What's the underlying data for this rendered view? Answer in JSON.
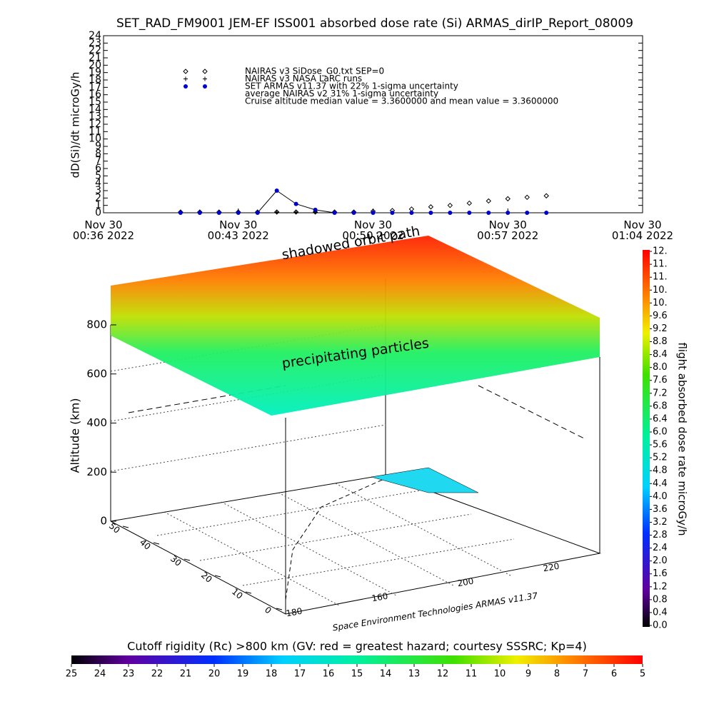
{
  "chart_data": [
    {
      "type": "scatter",
      "title": "SET_RAD_FM9001  JEM-EF ISS001 absorbed dose rate (Si) ARMAS_dirIP_Report_08009",
      "ylabel": "dD(Si)/dt microGy/h",
      "xlim": [
        "2022-11-30 00:36",
        "2022-11-30 01:04"
      ],
      "xticks": [
        {
          "value": "2022-11-30 00:36",
          "label": "Nov 30\n00:36 2022"
        },
        {
          "value": "2022-11-30 00:43",
          "label": "Nov 30\n00:43 2022"
        },
        {
          "value": "2022-11-30 00:50",
          "label": "Nov 30\n00:50 2022"
        },
        {
          "value": "2022-11-30 00:57",
          "label": "Nov 30\n00:57 2022"
        },
        {
          "value": "2022-11-30 01:04",
          "label": "Nov 30\n01:04 2022"
        }
      ],
      "ylim": [
        0,
        24
      ],
      "yticks": [
        0,
        1,
        2,
        3,
        4,
        5,
        6,
        7,
        8,
        9,
        10,
        11,
        12,
        13,
        14,
        15,
        16,
        17,
        18,
        19,
        20,
        21,
        22,
        23,
        24
      ],
      "x": [
        "2022-11-30 00:40",
        "2022-11-30 00:41",
        "2022-11-30 00:42",
        "2022-11-30 00:43",
        "2022-11-30 00:44",
        "2022-11-30 00:45",
        "2022-11-30 00:46",
        "2022-11-30 00:47",
        "2022-11-30 00:48",
        "2022-11-30 00:49",
        "2022-11-30 00:50",
        "2022-11-30 00:51",
        "2022-11-30 00:52",
        "2022-11-30 00:53",
        "2022-11-30 00:54",
        "2022-11-30 00:55",
        "2022-11-30 00:56",
        "2022-11-30 00:57",
        "2022-11-30 00:58",
        "2022-11-30 00:59"
      ],
      "series": [
        {
          "name": "NAIRAS v3 SiDose_G0.txt SEP=0",
          "marker": "diamond",
          "color": "#000000",
          "values": [
            0.1,
            0.1,
            0.1,
            0.1,
            0.1,
            0.1,
            0.1,
            0.1,
            0.1,
            0.1,
            0.2,
            0.3,
            0.5,
            0.8,
            1.0,
            1.3,
            1.6,
            1.9,
            2.1,
            2.3
          ]
        },
        {
          "name": "NAIRAS v3 NASA LaRC runs",
          "marker": "plus",
          "color": "#000000",
          "values": [
            0.1,
            0.1,
            0.1,
            0.1,
            0.1,
            0.1,
            0.1,
            0.1,
            null,
            null,
            null,
            null,
            null,
            null,
            null,
            null,
            null,
            null,
            null,
            null
          ]
        },
        {
          "name": "SET ARMAS v11.37 with 22% 1-sigma uncertainty",
          "marker": "circle",
          "color": "#0000cc",
          "values": [
            0,
            0,
            0,
            0,
            0,
            3.0,
            1.2,
            0.4,
            0,
            0,
            0,
            0,
            0,
            0,
            0,
            0,
            0,
            0,
            0,
            0
          ]
        }
      ],
      "notes": [
        "average NAIRAS v2 31% 1-sigma uncertainty",
        "Cruise altitude median value = 3.3600000 and mean value = 3.3600000"
      ]
    },
    {
      "type": "surface3d",
      "annotations": [
        "shadowed orbit path",
        "precipitating particles"
      ],
      "zlabel": "Altitude (km)",
      "zlim": [
        0,
        800
      ],
      "zticks": [
        0,
        200,
        400,
        600,
        800
      ],
      "yticks": [
        0,
        10,
        20,
        30,
        40,
        50
      ],
      "x_tick_labels": [
        "180",
        "160",
        "200",
        "220"
      ],
      "credit": "Space Environment Technologies ARMAS v11.37"
    },
    {
      "type": "colorbar",
      "label": "flight absorbed dose rate microGy/h",
      "ylim": [
        0,
        12
      ],
      "yticks": [
        {
          "value": 0,
          "label": "0.0"
        },
        {
          "value": 0.4,
          "label": "0.4"
        },
        {
          "value": 0.8,
          "label": "0.8"
        },
        {
          "value": 1.2,
          "label": "1.2"
        },
        {
          "value": 1.6,
          "label": "1.6"
        },
        {
          "value": 2.0,
          "label": "2.0"
        },
        {
          "value": 2.4,
          "label": "2.4"
        },
        {
          "value": 2.8,
          "label": "2.8"
        },
        {
          "value": 3.2,
          "label": "3.2"
        },
        {
          "value": 3.6,
          "label": "3.6"
        },
        {
          "value": 4.0,
          "label": "4.0"
        },
        {
          "value": 4.4,
          "label": "4.4"
        },
        {
          "value": 4.8,
          "label": "4.8"
        },
        {
          "value": 5.2,
          "label": "5.2"
        },
        {
          "value": 5.6,
          "label": "5.6"
        },
        {
          "value": 6.0,
          "label": "6.0"
        },
        {
          "value": 6.4,
          "label": "6.4"
        },
        {
          "value": 6.8,
          "label": "6.8"
        },
        {
          "value": 7.2,
          "label": "7.2"
        },
        {
          "value": 7.6,
          "label": "7.6"
        },
        {
          "value": 8.0,
          "label": "8.0"
        },
        {
          "value": 8.4,
          "label": "8.4"
        },
        {
          "value": 8.8,
          "label": "8.8"
        },
        {
          "value": 9.2,
          "label": "9.2"
        },
        {
          "value": 9.6,
          "label": "9.6"
        },
        {
          "value": 10.0,
          "label": "10."
        },
        {
          "value": 10.4,
          "label": "10."
        },
        {
          "value": 10.8,
          "label": "11."
        },
        {
          "value": 11.2,
          "label": "11."
        },
        {
          "value": 11.6,
          "label": "12."
        }
      ]
    },
    {
      "type": "colorbar",
      "title": "Cutoff rigidity (Rc) >800 km (GV: red = greatest hazard; courtesy SSSRC; Kp=4)",
      "xlim": [
        25,
        5
      ],
      "xticks": [
        25,
        24,
        23,
        22,
        21,
        20,
        19,
        18,
        17,
        16,
        15,
        14,
        13,
        12,
        11,
        10,
        9,
        8,
        7,
        6,
        5
      ]
    }
  ]
}
